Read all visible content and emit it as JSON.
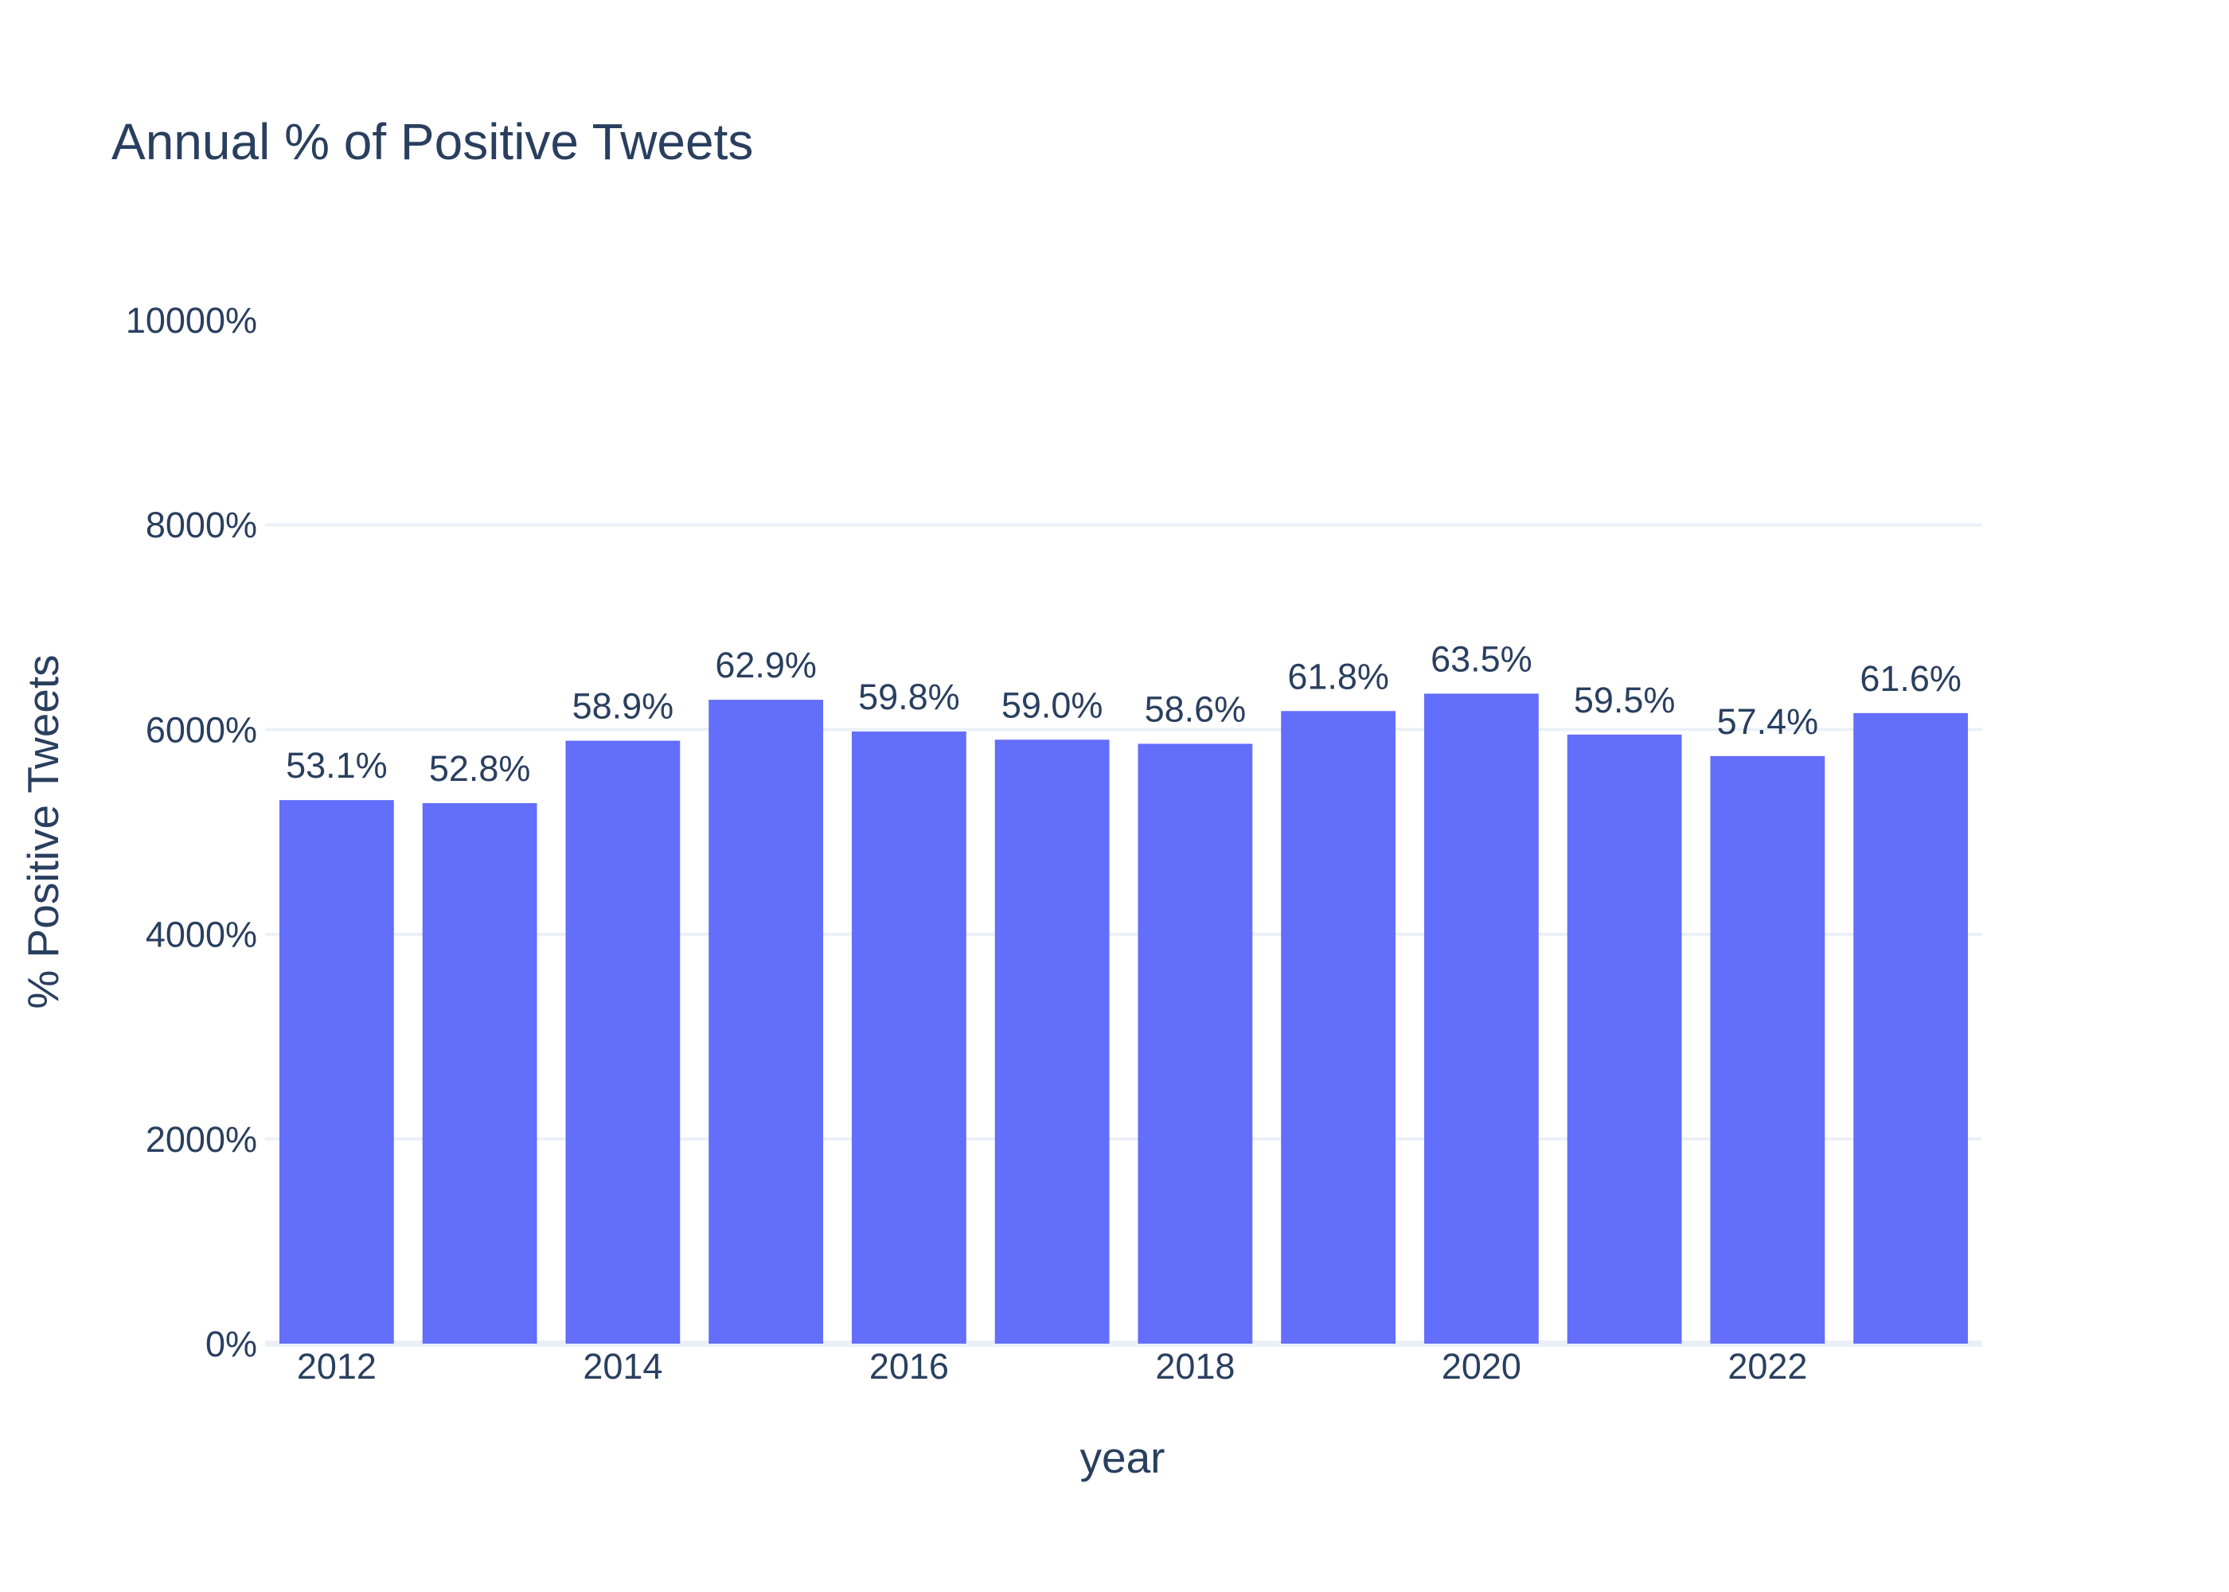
{
  "chart_data": {
    "type": "bar",
    "title": "Annual % of Positive Tweets",
    "xlabel": "year",
    "ylabel": "% Positive Tweets",
    "categories": [
      2012,
      2013,
      2014,
      2015,
      2016,
      2017,
      2018,
      2019,
      2020,
      2021,
      2022,
      2023
    ],
    "values": [
      5310,
      5280,
      5890,
      6290,
      5980,
      5900,
      5860,
      6180,
      6350,
      5950,
      5740,
      6160
    ],
    "data_labels": [
      "53.1%",
      "52.8%",
      "58.9%",
      "62.9%",
      "59.8%",
      "59.0%",
      "58.6%",
      "61.8%",
      "63.5%",
      "59.5%",
      "57.4%",
      "61.6%"
    ],
    "x_tick_labels": [
      "2012",
      "2014",
      "2016",
      "2018",
      "2020",
      "2022"
    ],
    "x_tick_values": [
      2012,
      2014,
      2016,
      2018,
      2020,
      2022
    ],
    "y_tick_labels": [
      "0%",
      "2000%",
      "4000%",
      "6000%",
      "8000%",
      "10000%"
    ],
    "y_tick_values": [
      0,
      2000,
      4000,
      6000,
      8000,
      10000
    ],
    "ylim": [
      0,
      10000
    ],
    "grid": true,
    "legend": false,
    "bar_color": "#636efa"
  }
}
